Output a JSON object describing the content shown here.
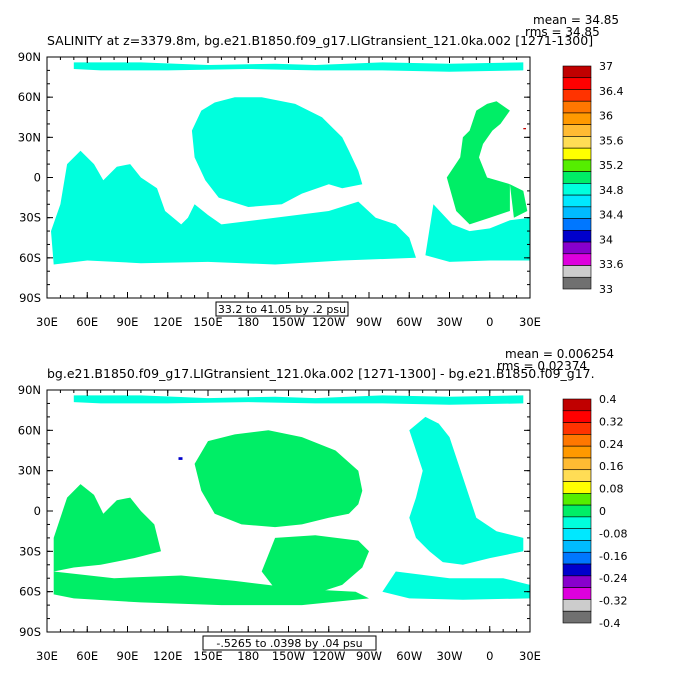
{
  "chart_data": [
    {
      "type": "heatmap",
      "title": "SALINITY at z=3379.8m, bg.e21.B1850.f09_g17.LIGtransient_121.0ka.002 [1271-1300]",
      "stats": [
        "mean = 34.85",
        "rms = 34.85"
      ],
      "x_ticks": [
        "30E",
        "60E",
        "90E",
        "120E",
        "150E",
        "180",
        "150W",
        "120W",
        "90W",
        "60W",
        "30W",
        "0",
        "30E"
      ],
      "y_ticks": [
        "90N",
        "60N",
        "30N",
        "0",
        "30S",
        "60S",
        "90S"
      ],
      "range_label": "33.2 to 41.05 by .2 psu",
      "colorbar_labels": [
        "37",
        "36.4",
        "36",
        "35.6",
        "35.2",
        "34.8",
        "34.4",
        "34",
        "33.6",
        "33"
      ],
      "colorbar_colors": [
        "#c00000",
        "#ff0000",
        "#ff3300",
        "#ff7700",
        "#ff9900",
        "#ffbb33",
        "#ffdd55",
        "#ffff00",
        "#55ee00",
        "#00ee66",
        "#00ffdd",
        "#00e8ff",
        "#00bbff",
        "#0077ff",
        "#0000cc",
        "#8800cc",
        "#dd00dd",
        "#cccccc",
        "#707070"
      ],
      "regions": [
        {
          "name": "arctic-band",
          "color": "#00ffdd",
          "value": 34.8
        },
        {
          "name": "pacific-basin",
          "color": "#00ffdd",
          "value": 34.8
        },
        {
          "name": "indian-ocean",
          "color": "#00ffdd",
          "value": 34.8
        },
        {
          "name": "south-atlantic",
          "color": "#00ffdd",
          "value": 34.8
        },
        {
          "name": "southern-ocean",
          "color": "#00ffdd",
          "value": 34.8
        },
        {
          "name": "north-atlantic",
          "color": "#00ee66",
          "value": 35.2
        },
        {
          "name": "mid-atlantic",
          "color": "#00ee66",
          "value": 35.2
        },
        {
          "name": "mediterranean-outflow",
          "color": "#c00000",
          "value": 37
        }
      ]
    },
    {
      "type": "heatmap",
      "title": "bg.e21.B1850.f09_g17.LIGtransient_121.0ka.002 [1271-1300] - bg.e21.B1850.f09_g17.",
      "stats": [
        "mean = 0.006254",
        "rms = 0.02374"
      ],
      "x_ticks": [
        "30E",
        "60E",
        "90E",
        "120E",
        "150E",
        "180",
        "150W",
        "120W",
        "90W",
        "60W",
        "30W",
        "0",
        "30E"
      ],
      "y_ticks": [
        "90N",
        "60N",
        "30N",
        "0",
        "30S",
        "60S",
        "90S"
      ],
      "range_label": "-.5265 to .0398 by .04 psu",
      "colorbar_labels": [
        "0.4",
        "0.32",
        "0.24",
        "0.16",
        "0.08",
        "0",
        "-0.08",
        "-0.16",
        "-0.24",
        "-0.32",
        "-0.4"
      ],
      "colorbar_colors": [
        "#c00000",
        "#ff0000",
        "#ff3300",
        "#ff7700",
        "#ff9900",
        "#ffbb33",
        "#ffdd55",
        "#ffff00",
        "#55ee00",
        "#00ee66",
        "#00ffdd",
        "#00e8ff",
        "#00bbff",
        "#0077ff",
        "#0000cc",
        "#8800cc",
        "#dd00dd",
        "#cccccc",
        "#707070"
      ],
      "regions": [
        {
          "name": "arctic-band",
          "color": "#00ffdd",
          "value": -0.04
        },
        {
          "name": "north-pacific",
          "color": "#00ee66",
          "value": 0.04
        },
        {
          "name": "south-pacific",
          "color": "#00ee66",
          "value": 0.04
        },
        {
          "name": "indian-ocean",
          "color": "#00ee66",
          "value": 0.04
        },
        {
          "name": "southern-ocean",
          "color": "#00ee66",
          "value": 0.04
        },
        {
          "name": "atlantic",
          "color": "#00ffdd",
          "value": -0.04
        },
        {
          "name": "south-atlantic-south-ocean",
          "color": "#00ffdd",
          "value": -0.04
        },
        {
          "name": "pacific-spot",
          "color": "#0000cc",
          "value": -0.24
        }
      ]
    }
  ]
}
